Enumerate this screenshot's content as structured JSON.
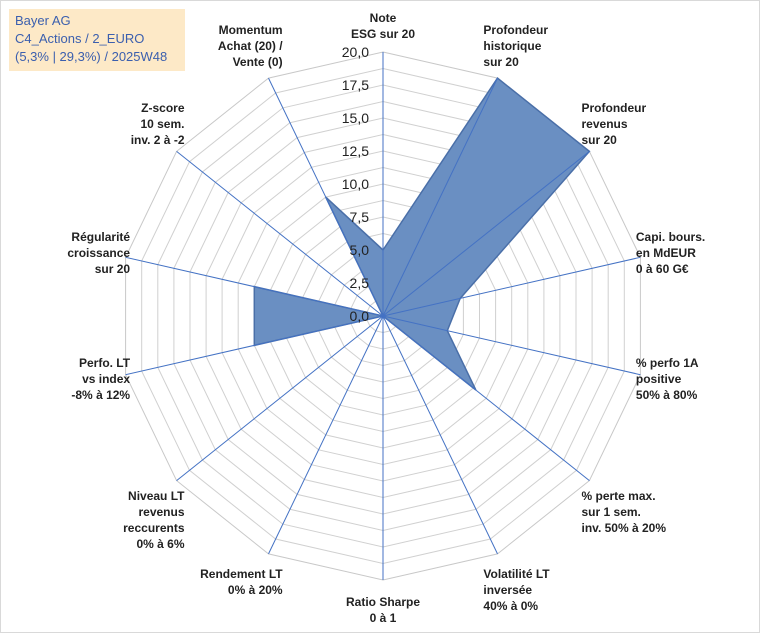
{
  "title_box": {
    "line1": "Bayer AG",
    "line2": "C4_Actions / 2_EURO",
    "line3": "(5,3% | 29,3%) / 2025W48"
  },
  "chart_data": {
    "type": "radar",
    "title": "Bayer AG",
    "rlim": [
      0,
      20
    ],
    "ticks": [
      "0,0",
      "2,5",
      "5,0",
      "7,5",
      "10,0",
      "12,5",
      "15,0",
      "17,5",
      "20,0"
    ],
    "grid_rings": 16,
    "grid": true,
    "axes": [
      {
        "label": [
          "Note",
          "ESG sur 20"
        ],
        "value": 5.0
      },
      {
        "label": [
          "Profondeur",
          "historique",
          "sur 20"
        ],
        "value": 20.0
      },
      {
        "label": [
          "Profondeur",
          "revenus",
          "sur 20"
        ],
        "value": 20.0
      },
      {
        "label": [
          "Capi. bours.",
          "en MdEUR",
          "0 à 60 G€"
        ],
        "value": 6.0
      },
      {
        "label": [
          "% perfo 1A",
          "positive",
          "50% à 80%"
        ],
        "value": 5.0
      },
      {
        "label": [
          "% perte max.",
          "sur 1 sem.",
          "inv. 50% à 20%"
        ],
        "value": 9.0
      },
      {
        "label": [
          "Volatilité LT",
          "inversée",
          "40% à 0%"
        ],
        "value": 0.0
      },
      {
        "label": [
          "Ratio Sharpe",
          "0 à 1"
        ],
        "value": 0.0
      },
      {
        "label": [
          "Rendement LT",
          "0% à 20%"
        ],
        "value": 0.0
      },
      {
        "label": [
          "Niveau LT",
          "revenus",
          "reccurents",
          "0% à 6%"
        ],
        "value": 0.0
      },
      {
        "label": [
          "Perfo. LT",
          "vs index",
          "-8% à 12%"
        ],
        "value": 10.0
      },
      {
        "label": [
          "Régularité",
          "croissance",
          "sur 20"
        ],
        "value": 10.0
      },
      {
        "label": [
          "Z-score",
          "10 sem.",
          "inv. 2 à -2"
        ],
        "value": 0.0
      },
      {
        "label": [
          "Momentum",
          "Achat (20) /",
          "Vente (0)"
        ],
        "value": 10.0
      }
    ],
    "series": [
      {
        "name": "Bayer AG",
        "fill": "#6a8fc2",
        "stroke": "#4a6fa8"
      }
    ],
    "grid_color": "#d0d0d0",
    "spoke_color": "#4472c4"
  }
}
